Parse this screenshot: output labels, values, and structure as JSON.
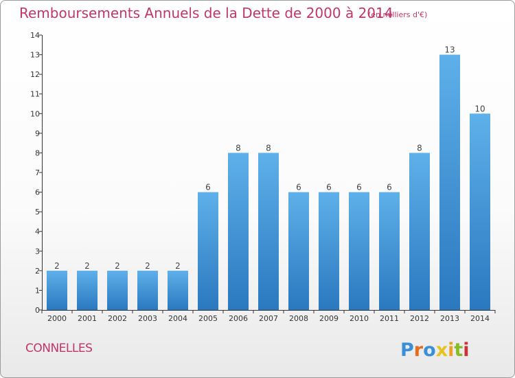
{
  "chart_data": {
    "type": "bar",
    "title": "Remboursements Annuels de la Dette de 2000 à 2014",
    "subtitle": "(en milliers d'€)",
    "categories": [
      "2000",
      "2001",
      "2002",
      "2003",
      "2004",
      "2005",
      "2006",
      "2007",
      "2008",
      "2009",
      "2010",
      "2011",
      "2012",
      "2013",
      "2014"
    ],
    "values": [
      2,
      2,
      2,
      2,
      2,
      6,
      8,
      8,
      6,
      6,
      6,
      6,
      8,
      13,
      10
    ],
    "data_labels": [
      "2",
      "2",
      "2",
      "2",
      "2",
      "6",
      "8",
      "8",
      "6",
      "6",
      "6",
      "6",
      "8",
      "13",
      "10"
    ],
    "ylim": [
      0,
      14
    ],
    "yticks": [
      "0",
      "1",
      "2",
      "3",
      "4",
      "5",
      "6",
      "7",
      "8",
      "9",
      "10",
      "11",
      "12",
      "13",
      "14"
    ],
    "grid": false,
    "bar_color_top": "#5eb0ea",
    "bar_color_bottom": "#2a78bf"
  },
  "footer": {
    "commune": "CONNELLES",
    "logo_text": "Proxiti"
  },
  "colors": {
    "title": "#c0366a",
    "axis": "#333333",
    "logo_letters": [
      "#3a8fd6",
      "#e86b1e",
      "#3a8fd6",
      "#e8c21e",
      "#f0a020",
      "#86bc27",
      "#cc3333"
    ]
  }
}
